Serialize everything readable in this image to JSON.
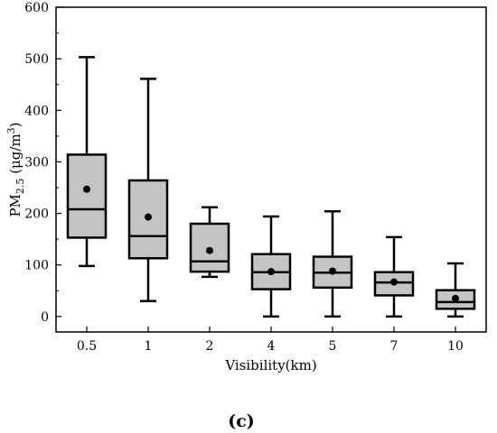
{
  "chart_data": {
    "type": "box",
    "xlabel": "Visibility(km)",
    "ylabel": {
      "prefix": "PM",
      "subscript": "2.5",
      "middle": " (μg/m",
      "superscript": "3",
      "suffix": ")"
    },
    "ylim": [
      -30,
      600
    ],
    "yticks": [
      0,
      100,
      200,
      300,
      400,
      500,
      600
    ],
    "categories": [
      "0.5",
      "1",
      "2",
      "4",
      "5",
      "7",
      "10"
    ],
    "boxes": [
      {
        "category": "0.5",
        "whisker_low": 98,
        "q1": 153,
        "median": 208,
        "q3": 314,
        "whisker_high": 503,
        "mean": 247
      },
      {
        "category": "1",
        "whisker_low": 30,
        "q1": 113,
        "median": 156,
        "q3": 264,
        "whisker_high": 461,
        "mean": 193
      },
      {
        "category": "2",
        "whisker_low": 77,
        "q1": 87,
        "median": 107,
        "q3": 180,
        "whisker_high": 212,
        "mean": 128
      },
      {
        "category": "4",
        "whisker_low": 0,
        "q1": 53,
        "median": 86,
        "q3": 121,
        "whisker_high": 194,
        "mean": 87
      },
      {
        "category": "5",
        "whisker_low": 0,
        "q1": 56,
        "median": 85,
        "q3": 116,
        "whisker_high": 204,
        "mean": 88
      },
      {
        "category": "7",
        "whisker_low": 0,
        "q1": 41,
        "median": 66,
        "q3": 86,
        "whisker_high": 154,
        "mean": 67
      },
      {
        "category": "10",
        "whisker_low": 0,
        "q1": 15,
        "median": 28,
        "q3": 51,
        "whisker_high": 103,
        "mean": 35
      }
    ],
    "box_fill": "#c4c4c4",
    "line_color": "#000000",
    "panel_label": "(c)"
  }
}
